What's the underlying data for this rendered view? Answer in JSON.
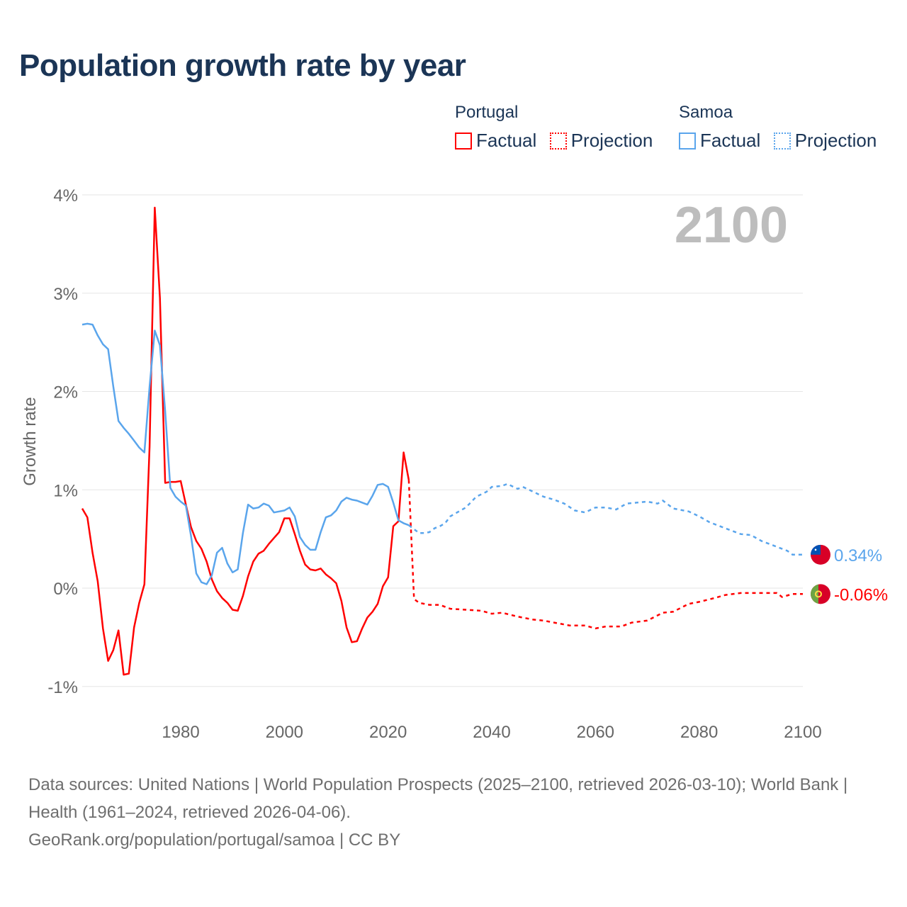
{
  "title": "Population growth rate by year",
  "legend": {
    "groups": [
      {
        "name": "Portugal",
        "factual": "Factual",
        "projection": "Projection",
        "color": "#ff0000"
      },
      {
        "name": "Samoa",
        "factual": "Factual",
        "projection": "Projection",
        "color": "#5aa5ec"
      }
    ]
  },
  "footer": {
    "sources": "Data sources: United Nations | World Population Prospects (2025–2100, retrieved 2026-03-10); World Bank | Health (1961–2024, retrieved 2026-04-06).",
    "credit": "GeoRank.org/population/portugal/samoa | CC BY"
  },
  "chart_data": {
    "type": "line",
    "title": "Population growth rate by year",
    "ylabel": "Growth rate",
    "xlabel": "",
    "xlim": [
      1961,
      2100
    ],
    "ylim": [
      -1.3,
      4.0
    ],
    "yticks": [
      -1,
      0,
      1,
      2,
      3,
      4
    ],
    "ytick_labels": [
      "-1%",
      "0%",
      "1%",
      "2%",
      "3%",
      "4%"
    ],
    "xticks": [
      1980,
      2000,
      2020,
      2040,
      2060,
      2080,
      2100
    ],
    "xtick_labels": [
      "1980",
      "2000",
      "2020",
      "2040",
      "2060",
      "2080",
      "2100"
    ],
    "year_label": "2100",
    "grid": true,
    "series": [
      {
        "name": "Portugal",
        "color": "#ff0000",
        "end_label": "-0.06%",
        "flag": "portugal-flag",
        "factual": {
          "x": [
            1961,
            1962,
            1963,
            1964,
            1965,
            1966,
            1967,
            1968,
            1969,
            1970,
            1971,
            1972,
            1973,
            1974,
            1975,
            1976,
            1977,
            1978,
            1979,
            1980,
            1981,
            1982,
            1983,
            1984,
            1985,
            1986,
            1987,
            1988,
            1989,
            1990,
            1991,
            1992,
            1993,
            1994,
            1995,
            1996,
            1997,
            1998,
            1999,
            2000,
            2001,
            2002,
            2003,
            2004,
            2005,
            2006,
            2007,
            2008,
            2009,
            2010,
            2011,
            2012,
            2013,
            2014,
            2015,
            2016,
            2017,
            2018,
            2019,
            2020,
            2021,
            2022,
            2023,
            2024
          ],
          "y": [
            0.81,
            0.72,
            0.36,
            0.07,
            -0.41,
            -0.74,
            -0.63,
            -0.43,
            -0.88,
            -0.87,
            -0.4,
            -0.15,
            0.04,
            1.44,
            3.87,
            2.95,
            1.07,
            1.08,
            1.08,
            1.09,
            0.85,
            0.62,
            0.48,
            0.4,
            0.27,
            0.09,
            -0.03,
            -0.1,
            -0.15,
            -0.22,
            -0.23,
            -0.08,
            0.12,
            0.27,
            0.35,
            0.38,
            0.45,
            0.51,
            0.57,
            0.71,
            0.71,
            0.55,
            0.38,
            0.24,
            0.19,
            0.18,
            0.2,
            0.14,
            0.1,
            0.05,
            -0.13,
            -0.4,
            -0.55,
            -0.54,
            -0.41,
            -0.3,
            -0.24,
            -0.16,
            0.02,
            0.11,
            0.63,
            0.68,
            1.38,
            1.1
          ]
        },
        "projection": {
          "x": [
            2024,
            2025,
            2026,
            2028,
            2030,
            2032,
            2035,
            2038,
            2040,
            2042,
            2045,
            2048,
            2050,
            2052,
            2055,
            2058,
            2060,
            2062,
            2065,
            2067,
            2070,
            2073,
            2075,
            2078,
            2080,
            2083,
            2085,
            2088,
            2090,
            2093,
            2095,
            2096,
            2098,
            2100
          ],
          "y": [
            1.1,
            -0.11,
            -0.15,
            -0.17,
            -0.17,
            -0.21,
            -0.22,
            -0.23,
            -0.26,
            -0.25,
            -0.29,
            -0.32,
            -0.33,
            -0.35,
            -0.38,
            -0.38,
            -0.41,
            -0.39,
            -0.39,
            -0.35,
            -0.33,
            -0.25,
            -0.24,
            -0.16,
            -0.14,
            -0.1,
            -0.07,
            -0.05,
            -0.05,
            -0.05,
            -0.05,
            -0.09,
            -0.06,
            -0.06
          ]
        }
      },
      {
        "name": "Samoa",
        "color": "#5aa5ec",
        "end_label": "0.34%",
        "flag": "samoa-flag",
        "factual": {
          "x": [
            1961,
            1962,
            1963,
            1964,
            1965,
            1966,
            1967,
            1968,
            1969,
            1970,
            1971,
            1972,
            1973,
            1974,
            1975,
            1976,
            1977,
            1978,
            1979,
            1980,
            1981,
            1982,
            1983,
            1984,
            1985,
            1986,
            1987,
            1988,
            1989,
            1990,
            1991,
            1992,
            1993,
            1994,
            1995,
            1996,
            1997,
            1998,
            1999,
            2000,
            2001,
            2002,
            2003,
            2004,
            2005,
            2006,
            2007,
            2008,
            2009,
            2010,
            2011,
            2012,
            2013,
            2014,
            2015,
            2016,
            2017,
            2018,
            2019,
            2020,
            2021,
            2022,
            2023,
            2024
          ],
          "y": [
            2.68,
            2.69,
            2.68,
            2.57,
            2.48,
            2.43,
            2.05,
            1.7,
            1.63,
            1.57,
            1.5,
            1.43,
            1.38,
            2.05,
            2.62,
            2.47,
            1.8,
            1.02,
            0.93,
            0.88,
            0.84,
            0.53,
            0.15,
            0.06,
            0.04,
            0.13,
            0.36,
            0.41,
            0.25,
            0.16,
            0.19,
            0.56,
            0.85,
            0.81,
            0.82,
            0.86,
            0.84,
            0.77,
            0.78,
            0.79,
            0.82,
            0.73,
            0.52,
            0.44,
            0.39,
            0.39,
            0.57,
            0.72,
            0.74,
            0.79,
            0.88,
            0.92,
            0.9,
            0.89,
            0.87,
            0.85,
            0.94,
            1.05,
            1.06,
            1.03,
            0.87,
            0.69,
            0.66,
            0.64
          ]
        },
        "projection": {
          "x": [
            2024,
            2026,
            2027,
            2028,
            2029,
            2030,
            2031,
            2032,
            2033,
            2035,
            2037,
            2039,
            2040,
            2042,
            2043,
            2045,
            2046,
            2048,
            2050,
            2052,
            2054,
            2056,
            2058,
            2060,
            2062,
            2064,
            2066,
            2068,
            2070,
            2072,
            2073,
            2075,
            2078,
            2080,
            2082,
            2085,
            2088,
            2090,
            2092,
            2095,
            2097,
            2098,
            2100
          ],
          "y": [
            0.64,
            0.56,
            0.56,
            0.57,
            0.61,
            0.63,
            0.66,
            0.73,
            0.76,
            0.82,
            0.93,
            0.98,
            1.03,
            1.04,
            1.06,
            1.01,
            1.03,
            0.98,
            0.93,
            0.9,
            0.86,
            0.79,
            0.77,
            0.82,
            0.82,
            0.8,
            0.86,
            0.87,
            0.88,
            0.86,
            0.89,
            0.81,
            0.78,
            0.73,
            0.67,
            0.61,
            0.55,
            0.54,
            0.48,
            0.42,
            0.38,
            0.34,
            0.34
          ]
        }
      }
    ]
  }
}
